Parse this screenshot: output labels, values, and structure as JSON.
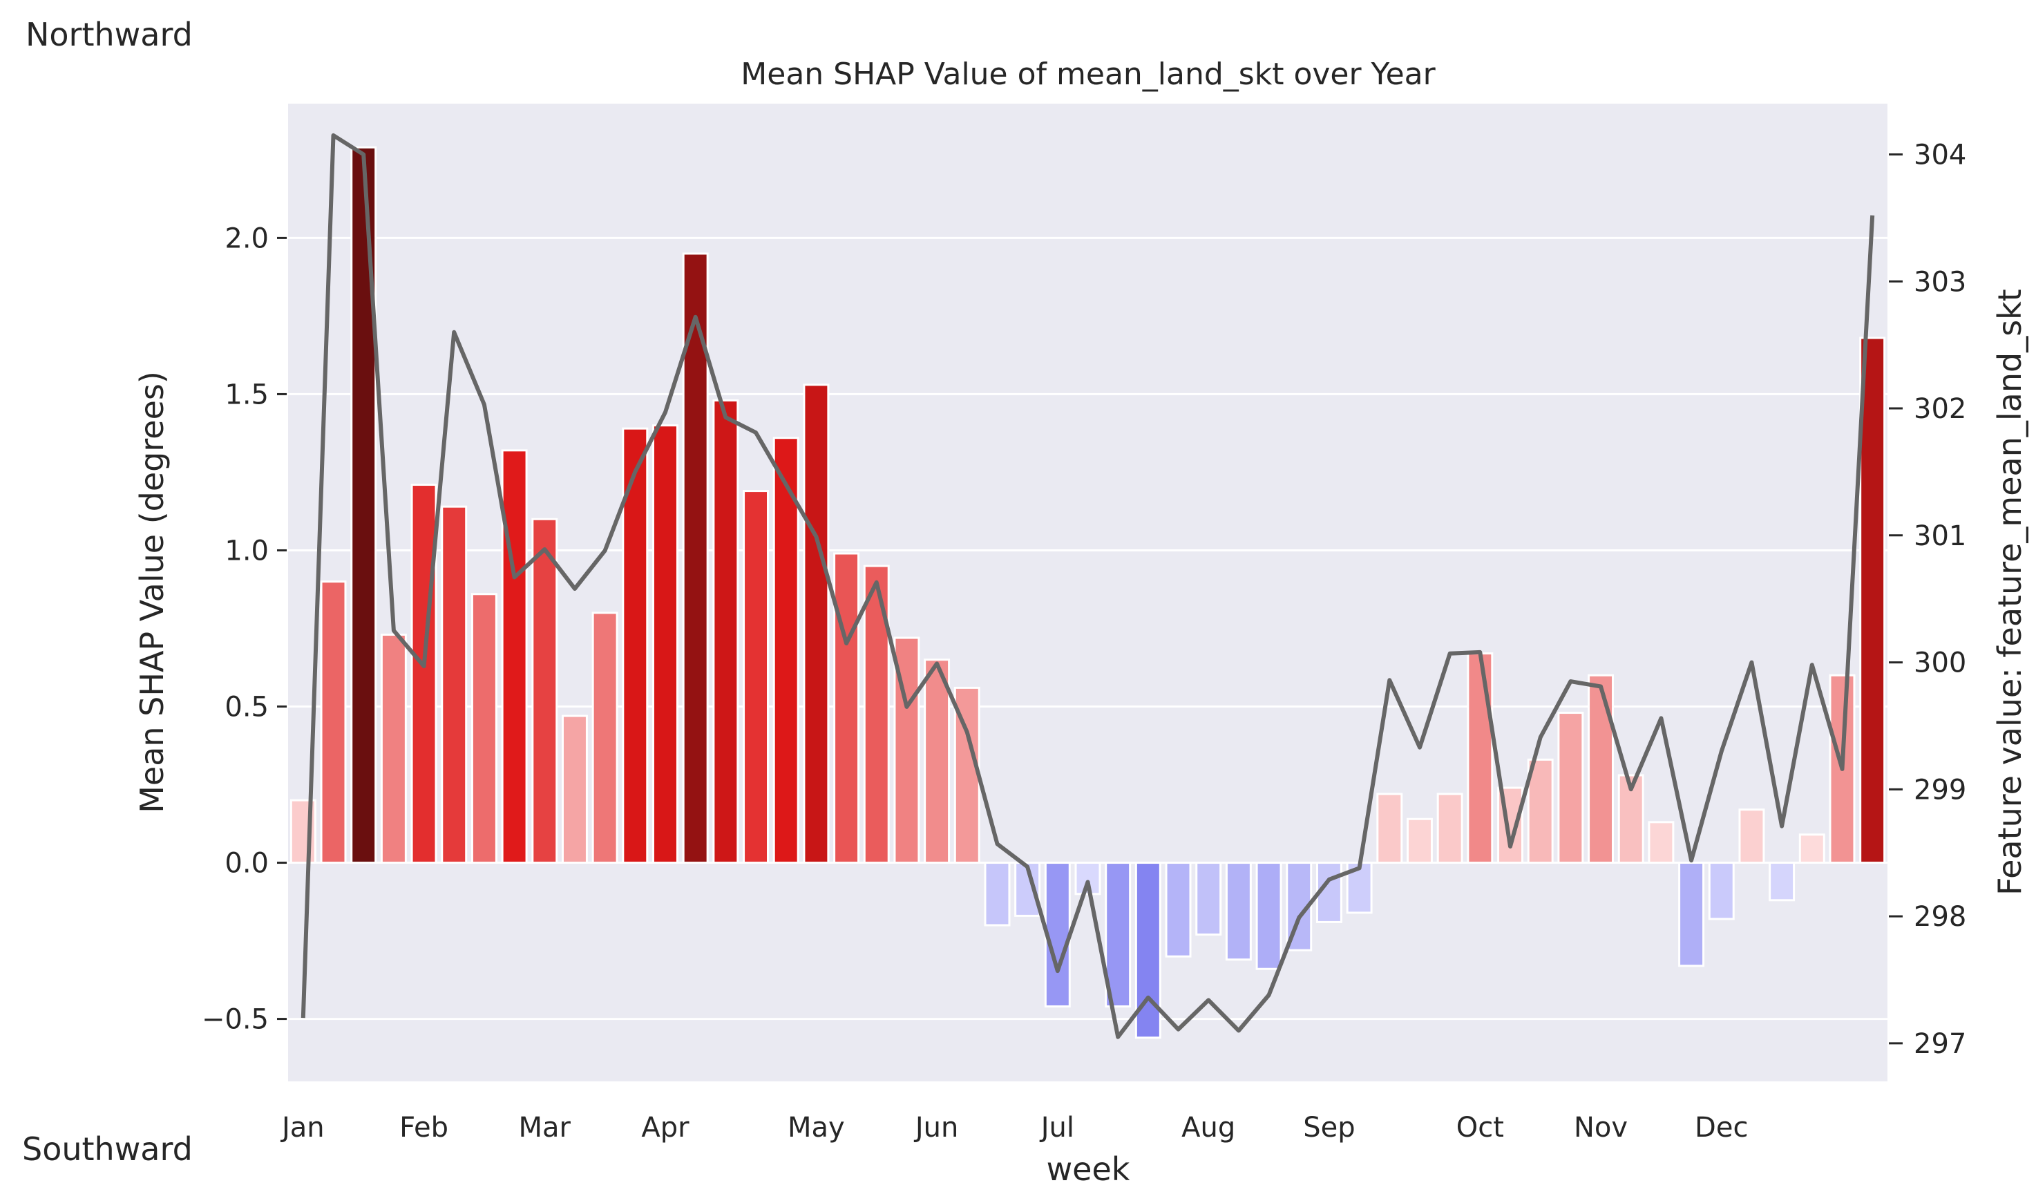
{
  "chart_data": {
    "type": "bar",
    "title": "Mean SHAP Value of mean_land_skt over Year",
    "xlabel": "week",
    "ylabel": "Mean SHAP Value (degrees)",
    "y2label": "Feature value: feature_mean_land_skt",
    "corner_labels": {
      "top": "Northward",
      "bottom": "Southward"
    },
    "ylim": [
      -0.7,
      2.43
    ],
    "y2lim": [
      296.7,
      304.4
    ],
    "yticks": [
      -0.5,
      0.0,
      0.5,
      1.0,
      1.5,
      2.0
    ],
    "ytick_labels": [
      "−0.5",
      "0.0",
      "0.5",
      "1.0",
      "1.5",
      "2.0"
    ],
    "y2ticks": [
      297,
      298,
      299,
      300,
      301,
      302,
      303,
      304
    ],
    "y2tick_labels": [
      "297",
      "298",
      "299",
      "300",
      "301",
      "302",
      "303",
      "304"
    ],
    "month_ticks": [
      {
        "week": 0,
        "label": "Jan"
      },
      {
        "week": 4,
        "label": "Feb"
      },
      {
        "week": 8,
        "label": "Mar"
      },
      {
        "week": 12,
        "label": "Apr"
      },
      {
        "week": 17,
        "label": "May"
      },
      {
        "week": 21,
        "label": "Jun"
      },
      {
        "week": 25,
        "label": "Jul"
      },
      {
        "week": 30,
        "label": "Aug"
      },
      {
        "week": 34,
        "label": "Sep"
      },
      {
        "week": 39,
        "label": "Oct"
      },
      {
        "week": 43,
        "label": "Nov"
      },
      {
        "week": 47,
        "label": "Dec"
      }
    ],
    "grid": true,
    "series": [
      {
        "kind": "bar",
        "values": [
          0.2,
          0.9,
          2.29,
          0.73,
          1.21,
          1.14,
          0.86,
          1.32,
          1.1,
          0.47,
          0.8,
          1.39,
          1.4,
          1.95,
          1.48,
          1.19,
          1.36,
          1.53,
          0.99,
          0.95,
          0.72,
          0.65,
          0.56,
          -0.2,
          -0.17,
          -0.46,
          -0.1,
          -0.46,
          -0.56,
          -0.3,
          -0.23,
          -0.31,
          -0.34,
          -0.28,
          -0.19,
          -0.16,
          0.22,
          0.14,
          0.22,
          0.67,
          0.24,
          0.33,
          0.48,
          0.6,
          0.28,
          0.13,
          -0.33,
          -0.18,
          0.17,
          -0.12,
          0.09,
          0.6,
          1.68
        ]
      },
      {
        "kind": "line",
        "color": "#666666",
        "values": [
          297.2,
          304.15,
          304.0,
          300.25,
          299.97,
          302.6,
          302.03,
          300.67,
          300.89,
          300.58,
          300.88,
          301.5,
          301.97,
          302.72,
          301.93,
          301.81,
          301.4,
          300.99,
          300.15,
          300.63,
          299.65,
          299.99,
          299.45,
          298.57,
          298.39,
          297.57,
          298.27,
          297.05,
          297.36,
          297.11,
          297.34,
          297.1,
          297.38,
          297.99,
          298.29,
          298.38,
          299.86,
          299.33,
          300.07,
          300.08,
          298.55,
          299.41,
          299.85,
          299.81,
          299.0,
          299.56,
          298.44,
          299.3,
          300.0,
          298.71,
          299.98,
          299.16,
          303.52
        ]
      }
    ]
  }
}
